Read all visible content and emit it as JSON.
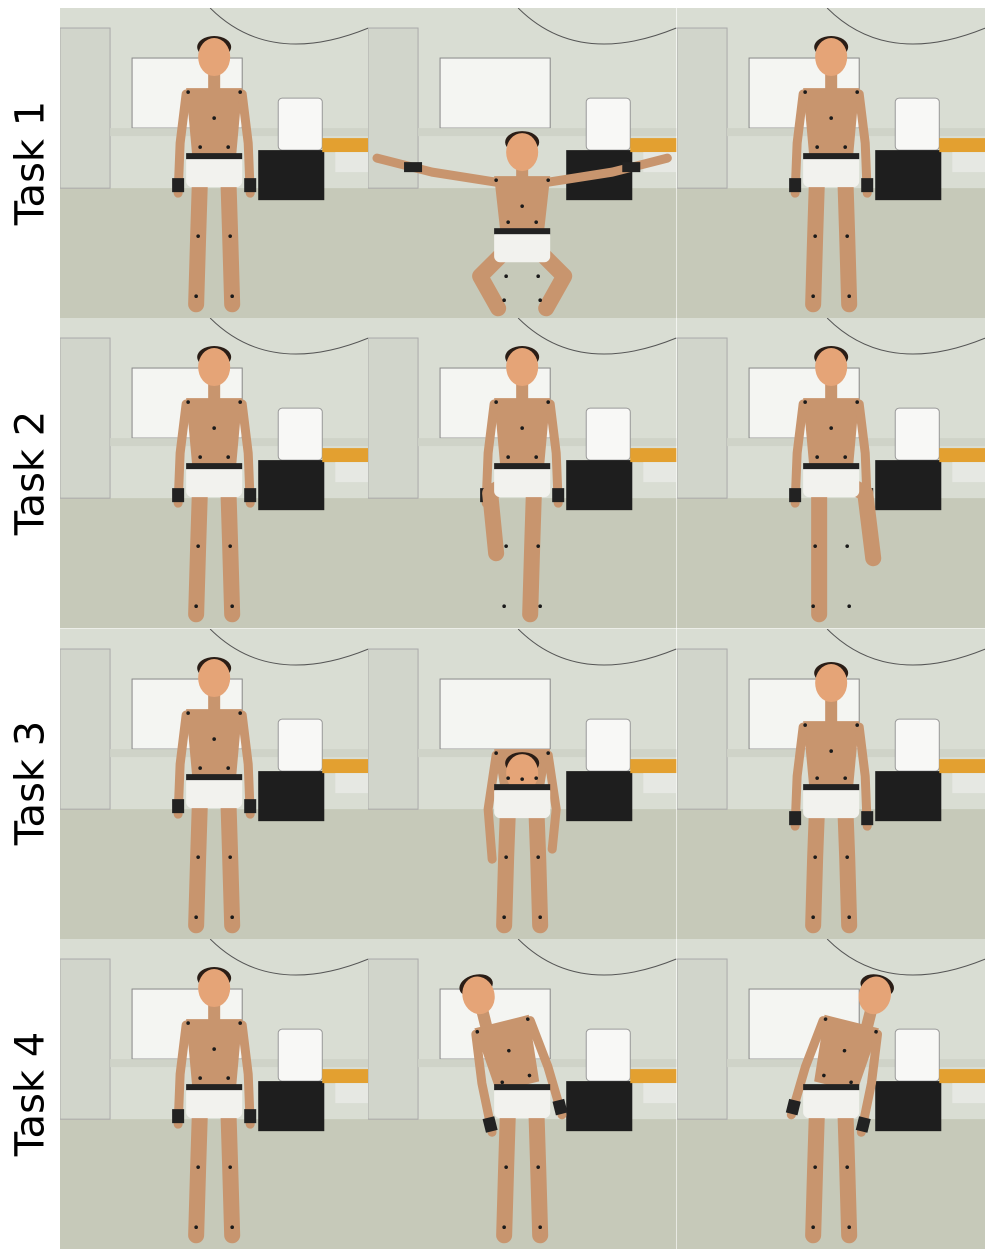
{
  "figure": {
    "rows": [
      {
        "label": "Task 1",
        "poses": [
          "stand",
          "squat-arms-out",
          "stand"
        ]
      },
      {
        "label": "Task 2",
        "poses": [
          "stand",
          "raise-left-knee",
          "raise-right-knee"
        ]
      },
      {
        "label": "Task 3",
        "poses": [
          "stand",
          "bend-forward",
          "lean-back"
        ]
      },
      {
        "label": "Task 4",
        "poses": [
          "stand",
          "side-bend-right",
          "side-bend-left"
        ]
      }
    ],
    "colors": {
      "wall": "#d9ddd3",
      "floor": "#c6c9b9",
      "skin": "#c8956e",
      "face": "#e5a477",
      "hair": "#2a1d16",
      "underwear": "#f2f2ee",
      "waistband": "#222222",
      "marker": "#1a1a1a",
      "whiteboard": "#f4f5f2",
      "cabinet": "#1e1e1e"
    }
  }
}
